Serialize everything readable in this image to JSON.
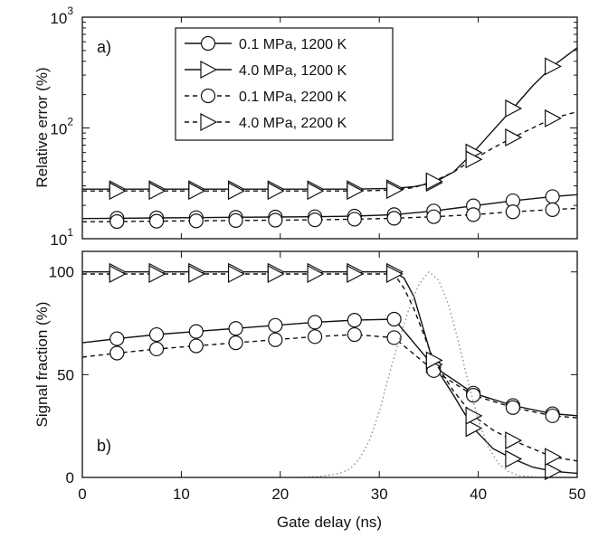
{
  "colors": {
    "axis": "#111111",
    "series": "#111111",
    "dotted_curve": "#8a8a8a",
    "background": "#ffffff"
  },
  "chart_data": [
    {
      "type": "line",
      "panel_label": "a)",
      "xlabel": "",
      "ylabel": "Relative error (%)",
      "yscale": "log",
      "xlim": [
        0,
        50
      ],
      "ylim": [
        10,
        1000
      ],
      "yticks": [
        {
          "base": "10",
          "exp": "1",
          "value": 10
        },
        {
          "base": "10",
          "exp": "2",
          "value": 100
        },
        {
          "base": "10",
          "exp": "3",
          "value": 1000
        }
      ],
      "legend_position": "top-left",
      "series": [
        {
          "name": "0.1 MPa, 1200 K",
          "marker": "circle",
          "line": "solid",
          "x": [
            0,
            3.5,
            7.5,
            11.5,
            15.5,
            19.5,
            23.5,
            27.5,
            31.5,
            35.5,
            39.5,
            43.5,
            47.5,
            50
          ],
          "y": [
            15.2,
            15.3,
            15.4,
            15.5,
            15.6,
            15.7,
            15.8,
            16.0,
            16.5,
            17.8,
            19.8,
            22.0,
            24.0,
            25.0
          ]
        },
        {
          "name": "4.0 MPa, 1200 K",
          "marker": "triangle-right",
          "line": "solid",
          "x": [
            0,
            3.5,
            7.5,
            11.5,
            15.5,
            19.5,
            23.5,
            27.5,
            31.5,
            33.5,
            35.5,
            37.5,
            39.5,
            41.5,
            43.5,
            45.5,
            47.5,
            50
          ],
          "y": [
            28,
            28,
            28,
            28,
            28,
            28,
            28,
            28,
            28.5,
            29.5,
            32,
            40,
            60,
            95,
            150,
            240,
            360,
            530
          ]
        },
        {
          "name": "0.1 MPa, 2200 K",
          "marker": "circle",
          "line": "dashed",
          "x": [
            0,
            3.5,
            7.5,
            11.5,
            15.5,
            19.5,
            23.5,
            27.5,
            31.5,
            35.5,
            39.5,
            43.5,
            47.5,
            50
          ],
          "y": [
            14.2,
            14.3,
            14.4,
            14.5,
            14.6,
            14.7,
            14.8,
            15.0,
            15.3,
            15.8,
            16.5,
            17.5,
            18.3,
            18.8
          ]
        },
        {
          "name": "4.0 MPa, 2200 K",
          "marker": "triangle-right",
          "line": "dashed",
          "x": [
            0,
            3.5,
            7.5,
            11.5,
            15.5,
            19.5,
            23.5,
            27.5,
            31.5,
            33.5,
            35.5,
            37.5,
            39.5,
            41.5,
            43.5,
            45.5,
            47.5,
            50
          ],
          "y": [
            27,
            27,
            27,
            27,
            27,
            27,
            27,
            27,
            27.5,
            29,
            33,
            40,
            52,
            66,
            82,
            100,
            122,
            140
          ]
        }
      ]
    },
    {
      "type": "line",
      "panel_label": "b)",
      "xlabel": "Gate delay (ns)",
      "ylabel": "Signal fraction (%)",
      "xlim": [
        0,
        50
      ],
      "ylim": [
        0,
        110
      ],
      "xticks": [
        0,
        10,
        20,
        30,
        40,
        50
      ],
      "yticks": [
        0,
        50,
        100
      ],
      "series": [
        {
          "name": "0.1 MPa, 1200 K",
          "marker": "circle",
          "line": "solid",
          "x": [
            0,
            3.5,
            7.5,
            11.5,
            15.5,
            19.5,
            23.5,
            27.5,
            31.5,
            35.5,
            39.5,
            43.5,
            47.5,
            50
          ],
          "y": [
            65.5,
            67.5,
            69.5,
            71,
            72.5,
            74,
            75.5,
            76.5,
            77,
            54,
            41,
            35,
            31,
            30
          ]
        },
        {
          "name": "4.0 MPa, 1200 K",
          "marker": "triangle-right",
          "line": "solid",
          "x": [
            0,
            3.5,
            7.5,
            11.5,
            15.5,
            19.5,
            23.5,
            27.5,
            31.5,
            32.5,
            33.5,
            35.5,
            37.5,
            39.5,
            41.5,
            43.5,
            45.5,
            47.5,
            50
          ],
          "y": [
            100,
            100,
            100,
            100,
            100,
            100,
            100,
            100,
            100,
            97,
            88,
            55,
            40,
            24,
            14,
            9,
            5,
            3,
            2
          ]
        },
        {
          "name": "0.1 MPa, 2200 K",
          "marker": "circle",
          "line": "dashed",
          "x": [
            0,
            3.5,
            7.5,
            11.5,
            15.5,
            19.5,
            23.5,
            27.5,
            31.5,
            35.5,
            39.5,
            43.5,
            47.5,
            50
          ],
          "y": [
            58.5,
            60.5,
            62.5,
            64,
            65.5,
            67,
            68.5,
            69.5,
            68,
            52,
            40,
            34,
            30,
            29
          ]
        },
        {
          "name": "4.0 MPa, 2200 K",
          "marker": "triangle-right",
          "line": "dashed",
          "x": [
            0,
            3.5,
            7.5,
            11.5,
            15.5,
            19.5,
            23.5,
            27.5,
            31.5,
            32.5,
            33.5,
            35.5,
            37.5,
            39.5,
            41.5,
            43.5,
            45.5,
            47.5,
            50
          ],
          "y": [
            99,
            99,
            99,
            99,
            99,
            99,
            99,
            99,
            99,
            92,
            82,
            57,
            42,
            30,
            23,
            18,
            14,
            10,
            8
          ]
        },
        {
          "name": "",
          "marker": "none",
          "line": "dotted",
          "x": [
            22,
            24,
            26,
            27,
            28,
            29,
            30,
            31,
            32,
            33,
            34,
            35,
            36,
            37,
            38,
            39,
            40,
            41,
            42,
            43,
            44,
            46,
            48,
            50
          ],
          "y": [
            0,
            0.5,
            2,
            4,
            9,
            18,
            32,
            50,
            67,
            82,
            94,
            100,
            96,
            84,
            66,
            46,
            28,
            15,
            7,
            3,
            1,
            0,
            0,
            0
          ]
        }
      ]
    }
  ]
}
